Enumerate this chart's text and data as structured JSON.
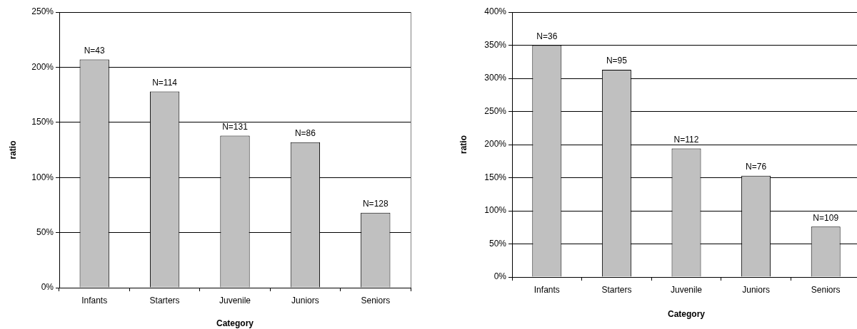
{
  "chart_data": [
    {
      "type": "bar",
      "categories": [
        "Infants",
        "Starters",
        "Juvenile",
        "Juniors",
        "Seniors"
      ],
      "values": [
        207,
        178,
        138,
        132,
        68
      ],
      "color": "#c0c0c0",
      "annotations": [
        {
          "text": "N=43",
          "x": "Infants",
          "y": 207
        },
        {
          "text": "N=114",
          "x": "Starters",
          "y": 178
        },
        {
          "text": "N=131",
          "x": "Juvenile",
          "y": 138
        },
        {
          "text": "N=86",
          "x": "Juniors",
          "y": 132
        },
        {
          "text": "N=128",
          "x": "Seniors",
          "y": 68
        }
      ],
      "xlabel": "Category",
      "ylabel": "ratio",
      "ylim": [
        0,
        250
      ],
      "yticks": [
        {
          "value": 0,
          "label": "0%"
        },
        {
          "value": 50,
          "label": "50%"
        },
        {
          "value": 100,
          "label": "100%"
        },
        {
          "value": 150,
          "label": "150%"
        },
        {
          "value": 200,
          "label": "200%"
        },
        {
          "value": 250,
          "label": "250%"
        }
      ],
      "grid": "y"
    },
    {
      "type": "bar",
      "categories": [
        "Infants",
        "Starters",
        "Juvenile",
        "Juniors",
        "Seniors"
      ],
      "values": [
        350,
        313,
        194,
        153,
        76
      ],
      "color": "#c0c0c0",
      "annotations": [
        {
          "text": "N=36",
          "x": "Infants",
          "y": 350
        },
        {
          "text": "N=95",
          "x": "Starters",
          "y": 313
        },
        {
          "text": "N=112",
          "x": "Juvenile",
          "y": 194
        },
        {
          "text": "N=76",
          "x": "Juniors",
          "y": 153
        },
        {
          "text": "N=109",
          "x": "Seniors",
          "y": 76
        }
      ],
      "xlabel": "Category",
      "ylabel": "ratio",
      "ylim": [
        0,
        400
      ],
      "yticks": [
        {
          "value": 0,
          "label": "0%"
        },
        {
          "value": 50,
          "label": "50%"
        },
        {
          "value": 100,
          "label": "100%"
        },
        {
          "value": 150,
          "label": "150%"
        },
        {
          "value": 200,
          "label": "200%"
        },
        {
          "value": 250,
          "label": "250%"
        },
        {
          "value": 300,
          "label": "300%"
        },
        {
          "value": 350,
          "label": "350%"
        },
        {
          "value": 400,
          "label": "400%"
        }
      ],
      "grid": "y"
    }
  ]
}
